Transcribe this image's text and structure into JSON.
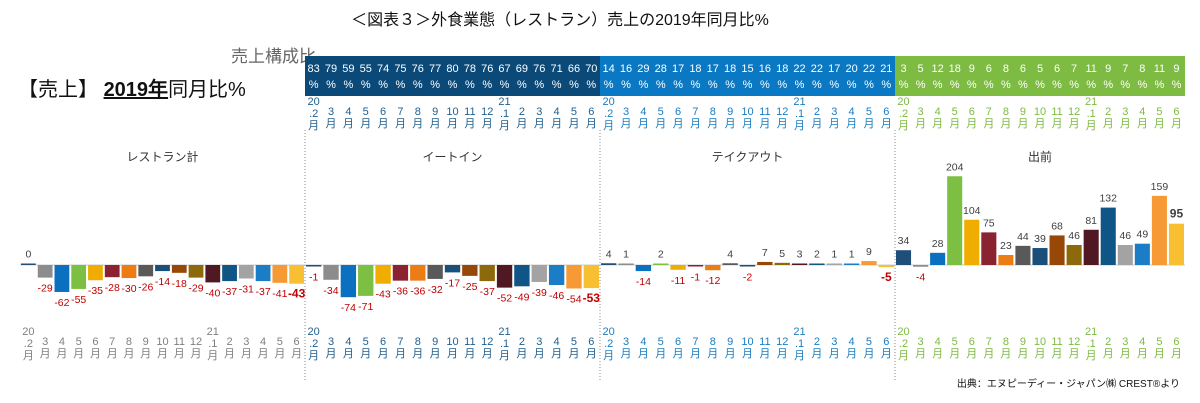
{
  "chart_data": {
    "type": "bar",
    "title": "＜図表３＞外食業態（レストラン）売上の2019年同月比%",
    "side_title": {
      "prefix": "【売上】 ",
      "year": "2019年",
      "suffix": "同月比%"
    },
    "share_label": "売上構成比",
    "source": "出典：エヌピーディー・ジャパン㈱ CREST®より",
    "month_unit": "月",
    "categories": [
      "20.2",
      "3",
      "4",
      "5",
      "6",
      "7",
      "8",
      "9",
      "10",
      "11",
      "12",
      "21.1",
      "2",
      "3",
      "4",
      "5",
      "6"
    ],
    "month_colors": [
      "#1f4e79",
      "#8c8c8c",
      "#0a70bf",
      "#7cbf42",
      "#f0ad00",
      "#8b2232",
      "#ec7c14",
      "#595959",
      "#1a4f7a",
      "#974706",
      "#8c6a0c",
      "#4f1822",
      "#0f5585",
      "#a3a3a3",
      "#1a7dc6",
      "#f79a35",
      "#f8bf33"
    ],
    "ylim": [
      -80,
      210
    ],
    "series": [
      {
        "name": "レストラン計",
        "values": [
          0,
          -29,
          -62,
          -55,
          -35,
          -28,
          -30,
          -26,
          -14,
          -18,
          -29,
          -40,
          -37,
          -31,
          -37,
          -41,
          -43
        ],
        "share": null
      },
      {
        "name": "イートイン",
        "values": [
          -1,
          -34,
          -74,
          -71,
          -43,
          -36,
          -36,
          -32,
          -17,
          -25,
          -37,
          -52,
          -49,
          -39,
          -46,
          -54,
          -53
        ],
        "share": [
          "83",
          "79",
          "59",
          "55",
          "74",
          "75",
          "76",
          "77",
          "80",
          "78",
          "76",
          "67",
          "69",
          "76",
          "71",
          "66",
          "70"
        ]
      },
      {
        "name": "テイクアウト",
        "values": [
          4,
          1,
          -14,
          2,
          -11,
          -1,
          -12,
          4,
          -2,
          7,
          5,
          3,
          2,
          1,
          1,
          9,
          -5
        ],
        "share": [
          "14",
          "16",
          "29",
          "28",
          "17",
          "18",
          "17",
          "18",
          "15",
          "16",
          "18",
          "22",
          "22",
          "17",
          "20",
          "22",
          "21"
        ]
      },
      {
        "name": "出前",
        "values": [
          34,
          -4,
          28,
          204,
          104,
          75,
          23,
          44,
          39,
          68,
          46,
          81,
          132,
          46,
          49,
          159,
          95
        ],
        "share": [
          "3",
          "5",
          "12",
          "18",
          "9",
          "6",
          "8",
          "6",
          "5",
          "6",
          "7",
          "11",
          "9",
          "7",
          "8",
          "11",
          "9"
        ]
      }
    ],
    "colors": {
      "band": [
        "#0b4a78",
        "#0a78c2",
        "#7dbb42"
      ],
      "axis": [
        "#7f7f7f",
        "#1f5f8f",
        "#1a7cc0",
        "#7dbb42"
      ],
      "neg_label": "#c00000",
      "pos_label": "#404040"
    }
  }
}
